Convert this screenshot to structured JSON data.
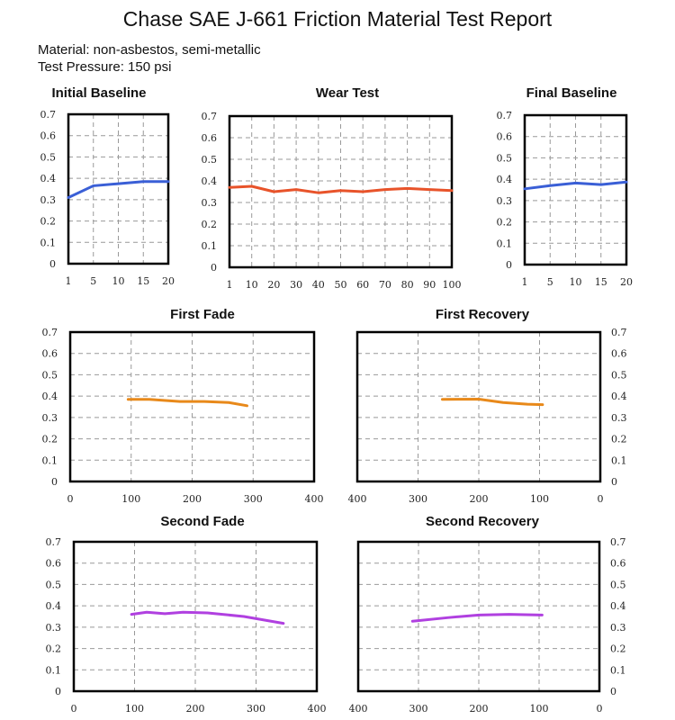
{
  "header": {
    "title": "Chase SAE J-661 Friction Material Test Report",
    "material": "Material: non-asbestos, semi-metallic",
    "pressure": "Test Pressure: 150 psi"
  },
  "chart_data": [
    {
      "type": "line",
      "title": "Initial Baseline",
      "x_type": "categorical",
      "categories": [
        "1",
        "5",
        "10",
        "15",
        "20"
      ],
      "values": [
        0.31,
        0.365,
        0.375,
        0.385,
        0.385
      ],
      "ylim": [
        0,
        0.7
      ],
      "yticks": [
        "0",
        "0.1",
        "0.2",
        "0.3",
        "0.4",
        "0.5",
        "0.6",
        "0.7"
      ],
      "y_axis_side": "left",
      "grid": true,
      "color": "#3a5fd6"
    },
    {
      "type": "line",
      "title": "Wear Test",
      "x_type": "categorical",
      "categories": [
        "1",
        "10",
        "20",
        "30",
        "40",
        "50",
        "60",
        "70",
        "80",
        "90",
        "100"
      ],
      "values": [
        0.37,
        0.375,
        0.35,
        0.36,
        0.345,
        0.355,
        0.35,
        0.36,
        0.365,
        0.36,
        0.355
      ],
      "ylim": [
        0,
        0.7
      ],
      "yticks": [
        "0",
        "0.1",
        "0.2",
        "0.3",
        "0.4",
        "0.5",
        "0.6",
        "0.7"
      ],
      "y_axis_side": "left",
      "grid": true,
      "color": "#e8532a"
    },
    {
      "type": "line",
      "title": "Final Baseline",
      "x_type": "categorical",
      "categories": [
        "1",
        "5",
        "10",
        "15",
        "20"
      ],
      "values": [
        0.355,
        0.37,
        0.382,
        0.375,
        0.387
      ],
      "ylim": [
        0,
        0.7
      ],
      "yticks": [
        "0",
        "0.1",
        "0.2",
        "0.3",
        "0.4",
        "0.5",
        "0.6",
        "0.7"
      ],
      "y_axis_side": "left",
      "grid": true,
      "color": "#3a5fd6"
    },
    {
      "type": "line",
      "title": "First Fade",
      "x_type": "linear",
      "xlim": [
        0,
        400
      ],
      "x_reversed": false,
      "xticks": [
        "0",
        "100",
        "200",
        "300",
        "400"
      ],
      "points": [
        [
          95,
          0.385
        ],
        [
          130,
          0.385
        ],
        [
          180,
          0.375
        ],
        [
          220,
          0.375
        ],
        [
          260,
          0.37
        ],
        [
          290,
          0.355
        ]
      ],
      "ylim": [
        0,
        0.7
      ],
      "yticks": [
        "0",
        "0.1",
        "0.2",
        "0.3",
        "0.4",
        "0.5",
        "0.6",
        "0.7"
      ],
      "y_axis_side": "left",
      "grid": true,
      "color": "#e8891a"
    },
    {
      "type": "line",
      "title": "First Recovery",
      "x_type": "linear",
      "xlim": [
        0,
        400
      ],
      "x_reversed": true,
      "xticks": [
        "400",
        "300",
        "200",
        "100",
        "0"
      ],
      "points": [
        [
          260,
          0.385
        ],
        [
          200,
          0.386
        ],
        [
          160,
          0.37
        ],
        [
          120,
          0.362
        ],
        [
          95,
          0.36
        ]
      ],
      "ylim": [
        0,
        0.7
      ],
      "yticks": [
        "0",
        "0.1",
        "0.2",
        "0.3",
        "0.4",
        "0.5",
        "0.6",
        "0.7"
      ],
      "y_axis_side": "right",
      "grid": true,
      "color": "#e8891a"
    },
    {
      "type": "line",
      "title": "Second Fade",
      "x_type": "linear",
      "xlim": [
        0,
        400
      ],
      "x_reversed": false,
      "xticks": [
        "0",
        "100",
        "200",
        "300",
        "400"
      ],
      "points": [
        [
          95,
          0.36
        ],
        [
          120,
          0.37
        ],
        [
          150,
          0.363
        ],
        [
          180,
          0.37
        ],
        [
          220,
          0.367
        ],
        [
          280,
          0.35
        ],
        [
          345,
          0.318
        ]
      ],
      "ylim": [
        0,
        0.7
      ],
      "yticks": [
        "0",
        "0.1",
        "0.2",
        "0.3",
        "0.4",
        "0.5",
        "0.6",
        "0.7"
      ],
      "y_axis_side": "left",
      "grid": true,
      "color": "#b040e0"
    },
    {
      "type": "line",
      "title": "Second Recovery",
      "x_type": "linear",
      "xlim": [
        0,
        400
      ],
      "x_reversed": true,
      "xticks": [
        "400",
        "300",
        "200",
        "100",
        "0"
      ],
      "points": [
        [
          310,
          0.328
        ],
        [
          250,
          0.345
        ],
        [
          200,
          0.357
        ],
        [
          150,
          0.36
        ],
        [
          95,
          0.357
        ]
      ],
      "ylim": [
        0,
        0.7
      ],
      "yticks": [
        "0",
        "0.1",
        "0.2",
        "0.3",
        "0.4",
        "0.5",
        "0.6",
        "0.7"
      ],
      "y_axis_side": "right",
      "grid": true,
      "color": "#b040e0"
    }
  ]
}
